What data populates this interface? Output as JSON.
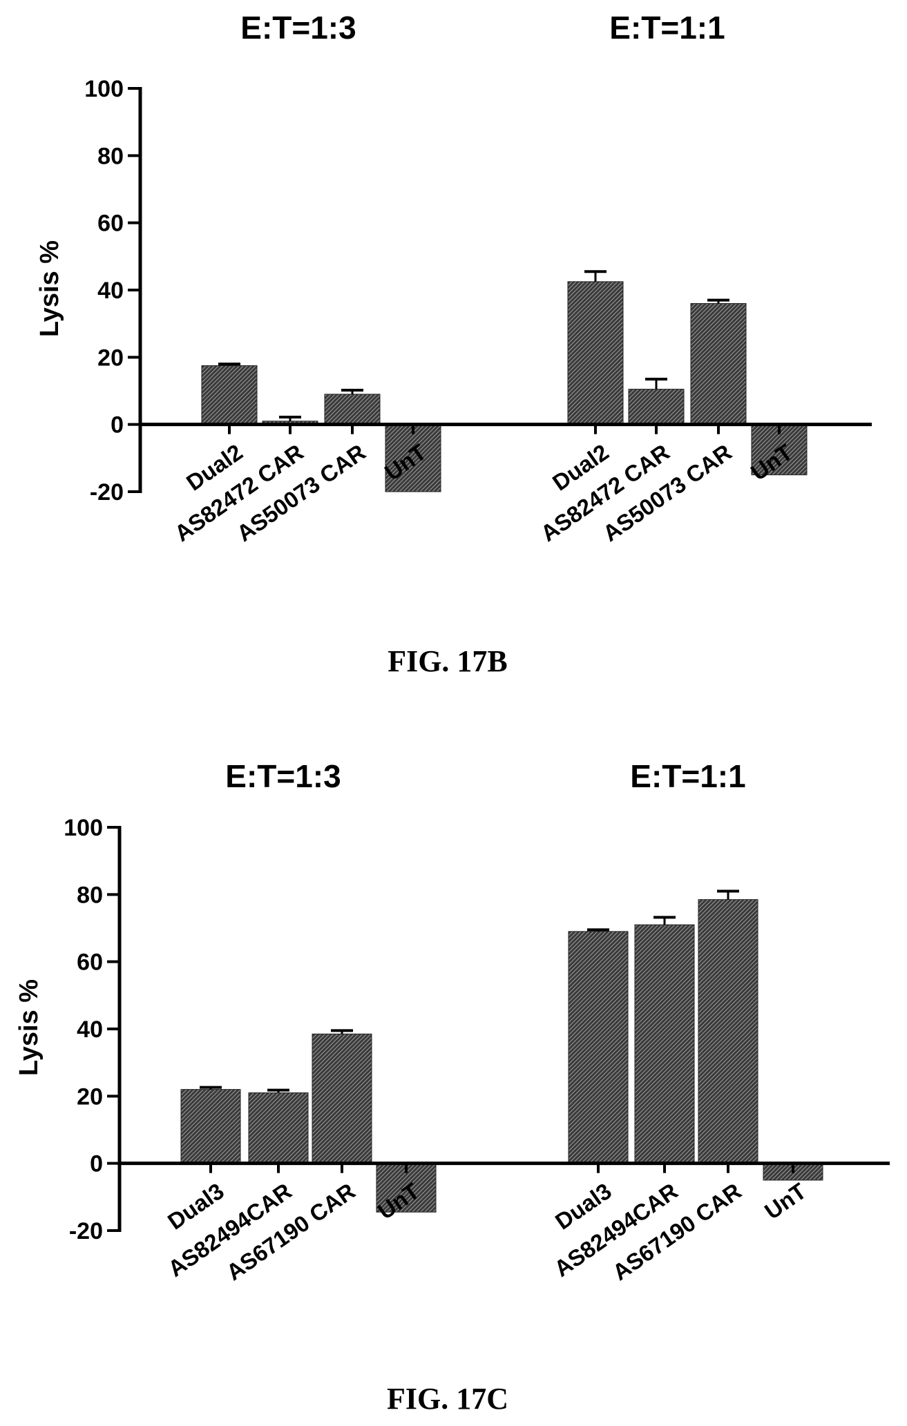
{
  "figures": [
    {
      "caption": "FIG. 17B",
      "panel_titles": [
        "E:T=1:3",
        "E:T=1:1"
      ],
      "ylabel": "Lysis %"
    },
    {
      "caption": "FIG. 17C",
      "panel_titles": [
        "E:T=1:3",
        "E:T=1:1"
      ],
      "ylabel": "Lysis %"
    }
  ],
  "chart_data": [
    {
      "type": "bar",
      "title": "",
      "ylabel": "Lysis %",
      "ylim": [
        -20,
        100
      ],
      "yticks": [
        100,
        80,
        60,
        40,
        20,
        0,
        -20
      ],
      "grid": false,
      "groups": [
        {
          "label": "E:T=1:3",
          "categories": [
            "Dual2",
            "AS82472 CAR",
            "AS50073 CAR",
            "UnT"
          ],
          "values": [
            17.5,
            1,
            9,
            -20
          ],
          "errors": [
            0.5,
            1.2,
            1.2,
            0
          ]
        },
        {
          "label": "E:T=1:1",
          "categories": [
            "Dual2",
            "AS82472 CAR",
            "AS50073 CAR",
            "UnT"
          ],
          "values": [
            42.5,
            10.5,
            36,
            -15
          ],
          "errors": [
            3,
            3,
            1,
            0
          ]
        }
      ]
    },
    {
      "type": "bar",
      "title": "",
      "ylabel": "Lysis %",
      "ylim": [
        -20,
        100
      ],
      "yticks": [
        100,
        80,
        60,
        40,
        20,
        0,
        -20
      ],
      "grid": false,
      "groups": [
        {
          "label": "E:T=1:3",
          "categories": [
            "Dual3",
            "AS82494CAR",
            "AS67190 CAR",
            "UnT"
          ],
          "values": [
            22,
            21,
            38.5,
            -14.5
          ],
          "errors": [
            0.6,
            0.8,
            1,
            0
          ]
        },
        {
          "label": "E:T=1:1",
          "categories": [
            "Dual3",
            "AS82494CAR",
            "AS67190 CAR",
            "UnT"
          ],
          "values": [
            69,
            71,
            78.5,
            -5
          ],
          "errors": [
            0.5,
            2.2,
            2.5,
            0
          ]
        }
      ]
    }
  ]
}
